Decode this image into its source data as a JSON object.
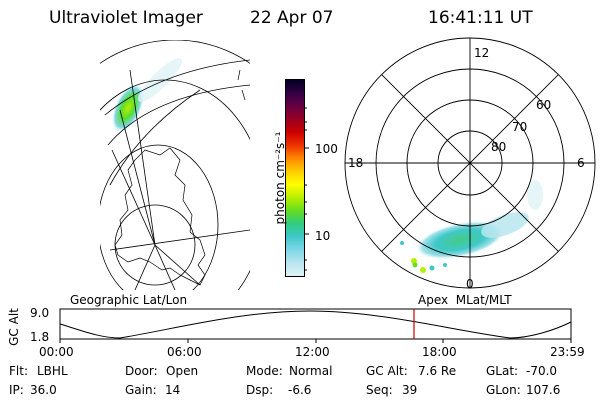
{
  "header": {
    "instrument": "Ultraviolet Imager",
    "date": "22 Apr 07",
    "time": "16:41:11 UT"
  },
  "panels": {
    "left_label": "Geographic Lat/Lon",
    "right_label": "Apex  MLat/MLT"
  },
  "colorbar": {
    "unit_label": "photon cm⁻²s⁻¹",
    "ticks": [
      "100",
      "10"
    ],
    "stops": [
      "#dff2f6",
      "#b8e6ee",
      "#7fd8e6",
      "#3fc8c8",
      "#30cc80",
      "#66dd22",
      "#b8ee00",
      "#ffff00",
      "#ffcc00",
      "#ff8800",
      "#ee3300",
      "#cc0000",
      "#990022",
      "#660044",
      "#330044",
      "#000022"
    ]
  },
  "polar_plot": {
    "mlt_labels": {
      "top": "12",
      "left": "18",
      "right": "6",
      "bottom": "0"
    },
    "lat_labels": [
      "60",
      "70",
      "80"
    ]
  },
  "timeline": {
    "yaxis_label": "GC Alt",
    "y_ticks": [
      "9.0",
      "1.8"
    ],
    "x_ticks": [
      "00:00",
      "06:00",
      "12:00",
      "18:00",
      "23:59"
    ],
    "marker_color": "#cc0000"
  },
  "status": {
    "row1": [
      {
        "key": "Flt:",
        "value": "LBHL"
      },
      {
        "key": "Door:",
        "value": "Open"
      },
      {
        "key": "Mode:",
        "value": "Normal"
      },
      {
        "key": "GC Alt:",
        "value": "7.6 Re"
      },
      {
        "key": "GLat:",
        "value": "-70.0"
      }
    ],
    "row2": [
      {
        "key": "IP:",
        "value": "36.0"
      },
      {
        "key": "Gain:",
        "value": "14"
      },
      {
        "key": "Dsp:",
        "value": "-6.6"
      },
      {
        "key": "Seq:",
        "value": "39"
      },
      {
        "key": "GLon:",
        "value": "107.6"
      }
    ]
  }
}
